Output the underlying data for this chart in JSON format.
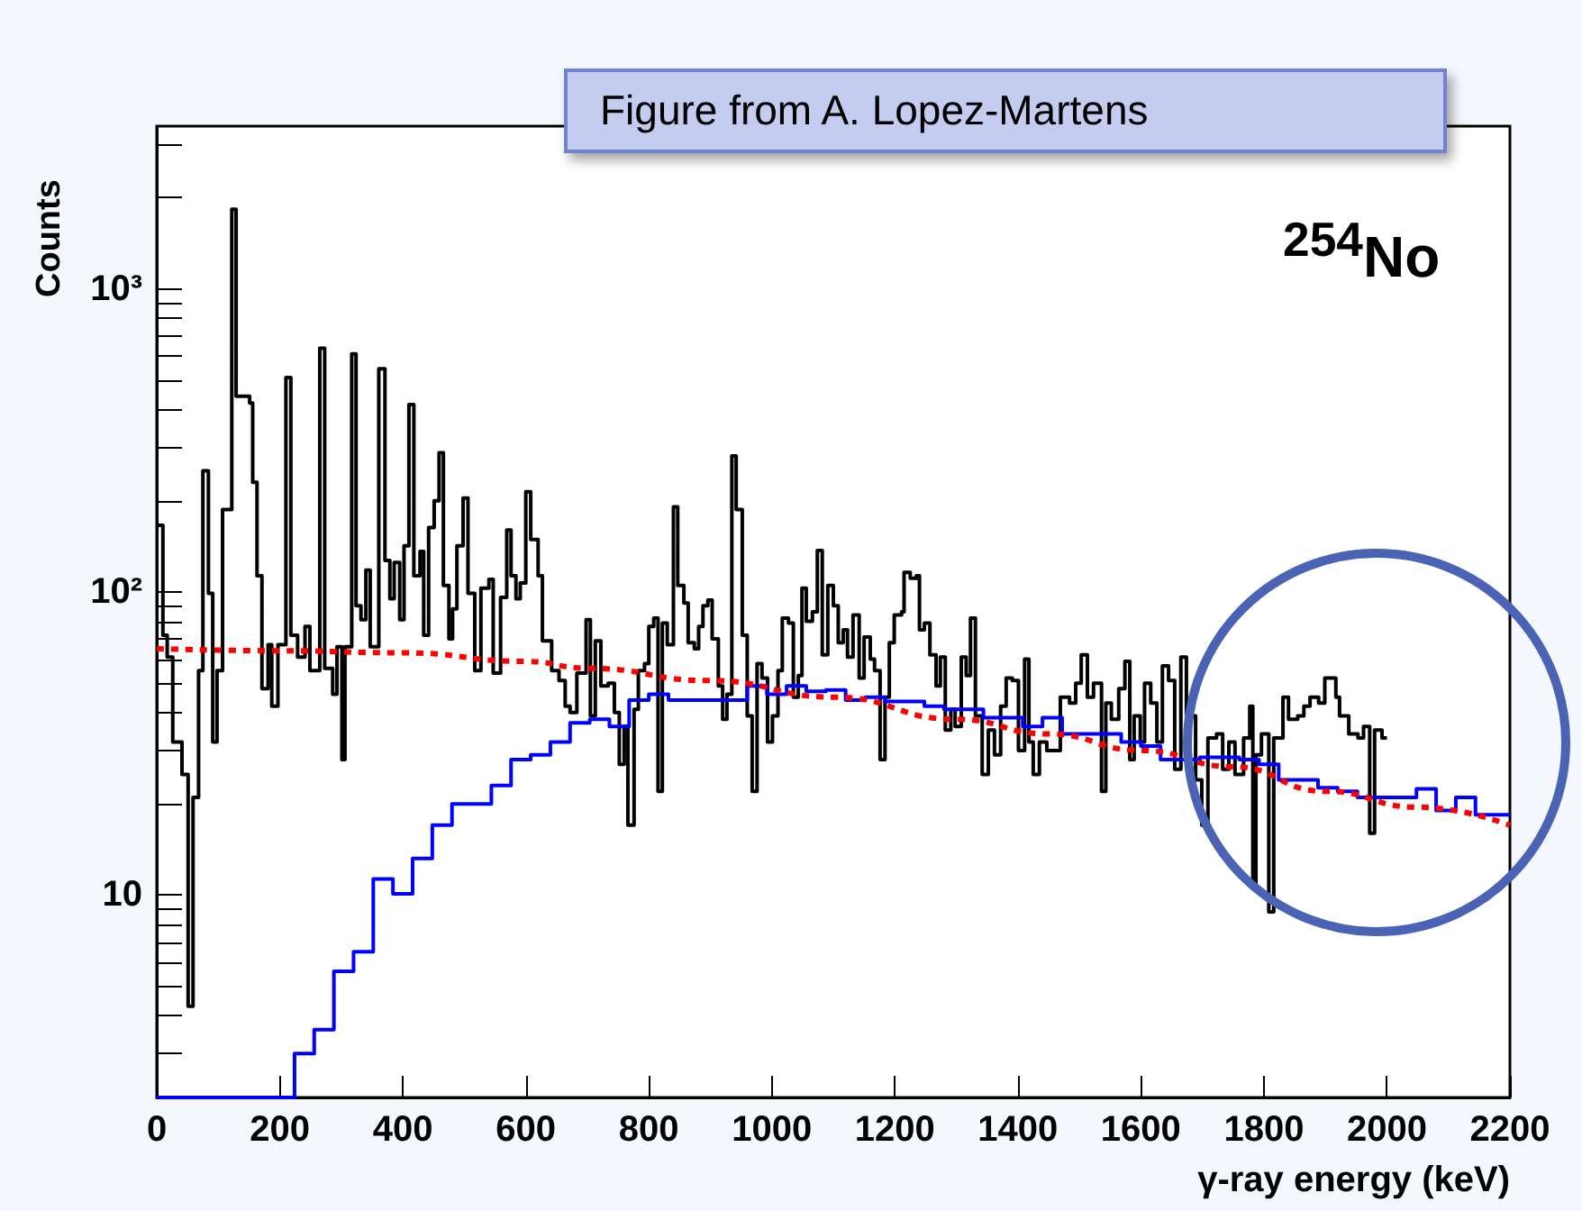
{
  "chart_data": {
    "type": "step",
    "xlabel": "γ-ray energy (keV)",
    "ylabel": "Counts",
    "log": true,
    "xlim": [
      0,
      2200
    ],
    "xticks": [
      0,
      200,
      400,
      600,
      800,
      1000,
      1200,
      1400,
      1600,
      1800,
      2000,
      2200
    ],
    "ylim": [
      2.15,
      3440
    ],
    "yticks": [
      {
        "value": 3,
        "label": null
      },
      {
        "value": 4,
        "label": null
      },
      {
        "value": 5,
        "label": null
      },
      {
        "value": 6,
        "label": null
      },
      {
        "value": 7,
        "label": null
      },
      {
        "value": 8,
        "label": null
      },
      {
        "value": 9,
        "label": null
      },
      10,
      {
        "value": 20,
        "label": null
      },
      {
        "value": 30,
        "label": null
      },
      {
        "value": 40,
        "label": null
      },
      {
        "value": 50,
        "label": null
      },
      {
        "value": 60,
        "label": null
      },
      {
        "value": 70,
        "label": null
      },
      {
        "value": 80,
        "label": null
      },
      {
        "value": 90,
        "label": null
      },
      {
        "value": 100,
        "label": "10²"
      },
      {
        "value": 200,
        "label": null
      },
      {
        "value": 300,
        "label": null
      },
      {
        "value": 400,
        "label": null
      },
      {
        "value": 500,
        "label": null
      },
      {
        "value": 600,
        "label": null
      },
      {
        "value": 700,
        "label": null
      },
      {
        "value": 800,
        "label": null
      },
      {
        "value": 900,
        "label": null
      },
      {
        "value": 1000,
        "label": "10³"
      },
      {
        "value": 2000,
        "label": null
      },
      {
        "value": 3000,
        "label": null
      }
    ],
    "annotations": [
      "Figure from A. Lopez-Martens",
      "$^{254}$No"
    ],
    "series": [
      {
        "color": "#000000",
        "x": [
          0,
          10,
          17,
          26,
          41,
          51,
          59,
          68,
          75,
          84,
          91,
          98,
          107,
          122,
          129,
          151,
          156,
          163,
          171,
          181,
          187,
          197,
          210,
          218,
          229,
          241,
          249,
          265,
          273,
          286,
          293,
          301,
          306,
          317,
          324,
          332,
          340,
          347,
          361,
          371,
          379,
          386,
          395,
          402,
          410,
          418,
          428,
          434,
          442,
          451,
          459,
          466,
          475,
          481,
          488,
          498,
          506,
          517,
          527,
          540,
          547,
          559,
          569,
          576,
          584,
          591,
          600,
          608,
          620,
          627,
          642,
          654,
          664,
          672,
          683,
          698,
          705,
          713,
          722,
          734,
          744,
          752,
          760,
          766,
          776,
          783,
          793,
          800,
          808,
          815,
          822,
          830,
          840,
          847,
          857,
          864,
          874,
          881,
          888,
          896,
          903,
          913,
          920,
          927,
          935,
          942,
          952,
          960,
          968,
          976,
          984,
          993,
          1001,
          1010,
          1017,
          1027,
          1035,
          1043,
          1049,
          1056,
          1066,
          1074,
          1082,
          1091,
          1100,
          1108,
          1116,
          1123,
          1132,
          1142,
          1150,
          1160,
          1167,
          1176,
          1184,
          1191,
          1199,
          1211,
          1215,
          1225,
          1235,
          1240,
          1248,
          1257,
          1267,
          1274,
          1282,
          1291,
          1298,
          1308,
          1316,
          1323,
          1331,
          1342,
          1352,
          1362,
          1372,
          1381,
          1391,
          1401,
          1411,
          1418,
          1425,
          1435,
          1447,
          1469,
          1484,
          1494,
          1503,
          1513,
          1523,
          1536,
          1543,
          1552,
          1564,
          1574,
          1582,
          1589,
          1599,
          1606,
          1616,
          1626,
          1635,
          1645,
          1655,
          1665,
          1674,
          1689,
          1699,
          1709,
          1723,
          1733,
          1743,
          1753,
          1767,
          1777,
          1782,
          1787,
          1796,
          1808,
          1816,
          1831,
          1840,
          1855,
          1865,
          1875,
          1889,
          1899,
          1917,
          1923,
          1938,
          1953,
          1962,
          1972,
          1980,
          1992,
          2000
        ],
        "values": [
          166,
          72,
          61,
          32,
          25,
          4.3,
          21,
          55,
          251,
          99,
          32,
          55,
          187,
          1830,
          442,
          420,
          230,
          113,
          48,
          67,
          42,
          67,
          510,
          72,
          61,
          77,
          55,
          637,
          56,
          46,
          66,
          28,
          66,
          610,
          90,
          81,
          118,
          66,
          545,
          127,
          95,
          125,
          81,
          142,
          415,
          113,
          136,
          72,
          163,
          200,
          288,
          105,
          70,
          88,
          142,
          204,
          99,
          55,
          103,
          110,
          54,
          96,
          160,
          113,
          95,
          107,
          214,
          149,
          113,
          69,
          55,
          51,
          42,
          40,
          54,
          81,
          39,
          69,
          49,
          50,
          40,
          27,
          36,
          17,
          41,
          55,
          58,
          77,
          82,
          22,
          79,
          67,
          191,
          105,
          92,
          68,
          65,
          77,
          90,
          94,
          70,
          49,
          38,
          46,
          281,
          187,
          72,
          39,
          22,
          58,
          52,
          32,
          39,
          55,
          82,
          79,
          45,
          53,
          103,
          80,
          86,
          137,
          62,
          105,
          90,
          68,
          75,
          61,
          84,
          52,
          71,
          60,
          55,
          28,
          45,
          68,
          84,
          86,
          116,
          111,
          113,
          75,
          79,
          62,
          49,
          61,
          35,
          41,
          36,
          61,
          53,
          82,
          39,
          25,
          35,
          29,
          42,
          52,
          51,
          30,
          60,
          32,
          25,
          32,
          30,
          45,
          43,
          50,
          62,
          45,
          50,
          22,
          43,
          38,
          48,
          59,
          28,
          39,
          32,
          50,
          43,
          32,
          57,
          51,
          26,
          61,
          39,
          24,
          17,
          33,
          34,
          26,
          32,
          25,
          33,
          42,
          10.5,
          29,
          34,
          8.8,
          33,
          45,
          38,
          39,
          42,
          45,
          43,
          52,
          45,
          39,
          34,
          33,
          36,
          16,
          35,
          33,
          33
        ]
      },
      {
        "color": "#0000ff",
        "x": [
          0,
          224,
          256,
          288,
          320,
          352,
          384,
          416,
          448,
          480,
          512,
          544,
          576,
          608,
          640,
          672,
          704,
          736,
          768,
          800,
          832,
          864,
          896,
          928,
          960,
          992,
          1024,
          1056,
          1088,
          1120,
          1152,
          1184,
          1216,
          1248,
          1280,
          1312,
          1344,
          1376,
          1408,
          1440,
          1472,
          1504,
          1536,
          1568,
          1600,
          1632,
          1664,
          1696,
          1728,
          1760,
          1792,
          1824,
          1856,
          1888,
          1920,
          1952,
          1984,
          2016,
          2048,
          2080,
          2112,
          2144,
          2176,
          2200
        ],
        "values": [
          2.15,
          3.0,
          3.6,
          5.6,
          6.5,
          11.3,
          10.1,
          13.2,
          17,
          20,
          20,
          23,
          28,
          29,
          32,
          37,
          38,
          36,
          44,
          46,
          44,
          44,
          44,
          44,
          49,
          46,
          49,
          47,
          47.5,
          44,
          45,
          43.5,
          43.5,
          42,
          41,
          41,
          38.5,
          38.5,
          36,
          38.5,
          34,
          34,
          34,
          32,
          31,
          28,
          28,
          28.5,
          28.5,
          28,
          27,
          24,
          24,
          22.6,
          22,
          21,
          21,
          21,
          22.4,
          19,
          21,
          18.4,
          18.4,
          18.4
        ]
      },
      {
        "type": "line",
        "color": "#ff0000",
        "line_style": "dotted",
        "x": [
          0,
          200,
          400,
          600,
          700,
          900,
          1100,
          1300,
          1450,
          1600,
          1750,
          1900,
          2050,
          2200
        ],
        "values": [
          65,
          64,
          63,
          59,
          56,
          51,
          45,
          38,
          34,
          30,
          26.5,
          22,
          19.5,
          17
        ]
      }
    ]
  }
}
